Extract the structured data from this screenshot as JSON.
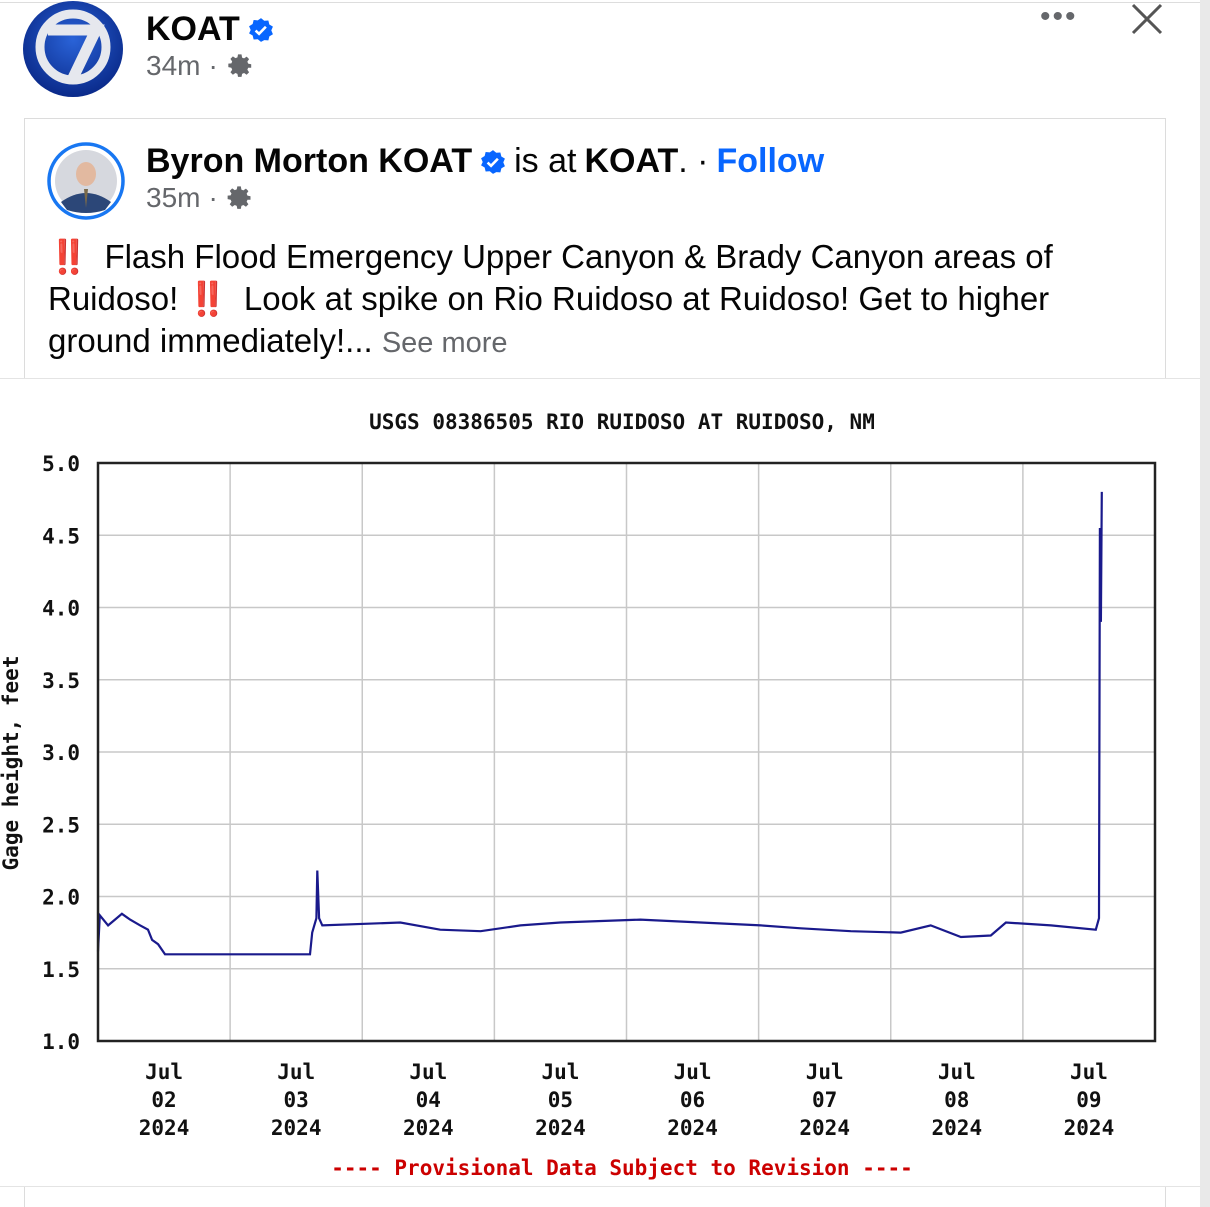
{
  "page": {
    "name": "KOAT",
    "time": "34m",
    "separator": "·",
    "more_icon": "more-horizontal-icon",
    "close_icon": "close-icon",
    "verified_color": "#0866ff"
  },
  "shared": {
    "author": "Byron Morton KOAT",
    "is_at": "is at",
    "place": "KOAT",
    "place_suffix": ". ·",
    "follow_label": "Follow",
    "time": "35m",
    "separator": "·",
    "text_1": "Flash Flood Emergency Upper Canyon & Brady Canyon areas of Ruidoso!",
    "text_2": "Look at spike on Rio Ruidoso at Ruidoso! Get to higher ground immediately!...",
    "emoji": "‼️",
    "see_more": "See more"
  },
  "chart_data": {
    "type": "line",
    "title": "USGS 08386505 RIO RUIDOSO AT RUIDOSO, NM",
    "ylabel": "Gage height, feet",
    "xlabel": "",
    "ylim": [
      1.0,
      5.0
    ],
    "yticks": [
      "5.0",
      "4.5",
      "4.0",
      "3.5",
      "3.0",
      "2.5",
      "2.0",
      "1.5",
      "1.0"
    ],
    "xlim": [
      "2024-07-02 00:00",
      "2024-07-10 00:00"
    ],
    "xticks": [
      {
        "month": "Jul",
        "day": "02",
        "year": "2024"
      },
      {
        "month": "Jul",
        "day": "03",
        "year": "2024"
      },
      {
        "month": "Jul",
        "day": "04",
        "year": "2024"
      },
      {
        "month": "Jul",
        "day": "05",
        "year": "2024"
      },
      {
        "month": "Jul",
        "day": "06",
        "year": "2024"
      },
      {
        "month": "Jul",
        "day": "07",
        "year": "2024"
      },
      {
        "month": "Jul",
        "day": "08",
        "year": "2024"
      },
      {
        "month": "Jul",
        "day": "09",
        "year": "2024"
      }
    ],
    "grid": true,
    "line_color": "#1a1a8c",
    "footnote": "---- Provisional Data Subject to Revision ----",
    "footnote_color": "#cc0000",
    "x": [
      "2024-07-02 00:00",
      "2024-07-02 00:20",
      "2024-07-02 01:50",
      "2024-07-02 03:05",
      "2024-07-02 04:20",
      "2024-07-02 05:50",
      "2024-07-02 07:40",
      "2024-07-02 09:05",
      "2024-07-02 09:50",
      "2024-07-02 10:55",
      "2024-07-02 12:10",
      "2024-07-03 14:30",
      "2024-07-03 14:55",
      "2024-07-03 15:40",
      "2024-07-03 15:50",
      "2024-07-03 16:10",
      "2024-07-03 16:45",
      "2024-07-04 06:55",
      "2024-07-04 14:10",
      "2024-07-04 21:30",
      "2024-07-05 04:45",
      "2024-07-05 12:00",
      "2024-07-06 02:30",
      "2024-07-06 13:30",
      "2024-07-07 00:25",
      "2024-07-07 07:40",
      "2024-07-07 16:45",
      "2024-07-08 01:50",
      "2024-07-08 07:15",
      "2024-07-08 12:45",
      "2024-07-08 18:10",
      "2024-07-08 20:55",
      "2024-07-09 05:05",
      "2024-07-09 13:15",
      "2024-07-09 13:50",
      "2024-07-09 14:00",
      "2024-07-09 14:10",
      "2024-07-09 14:20"
    ],
    "y": [
      1.62,
      1.87,
      1.8,
      1.84,
      1.88,
      1.84,
      1.8,
      1.77,
      1.7,
      1.67,
      1.6,
      1.6,
      1.75,
      1.85,
      2.18,
      1.85,
      1.8,
      1.82,
      1.77,
      1.76,
      1.8,
      1.82,
      1.84,
      1.82,
      1.8,
      1.78,
      1.76,
      1.75,
      1.8,
      1.72,
      1.73,
      1.82,
      1.8,
      1.77,
      1.85,
      4.55,
      3.9,
      4.8
    ]
  }
}
